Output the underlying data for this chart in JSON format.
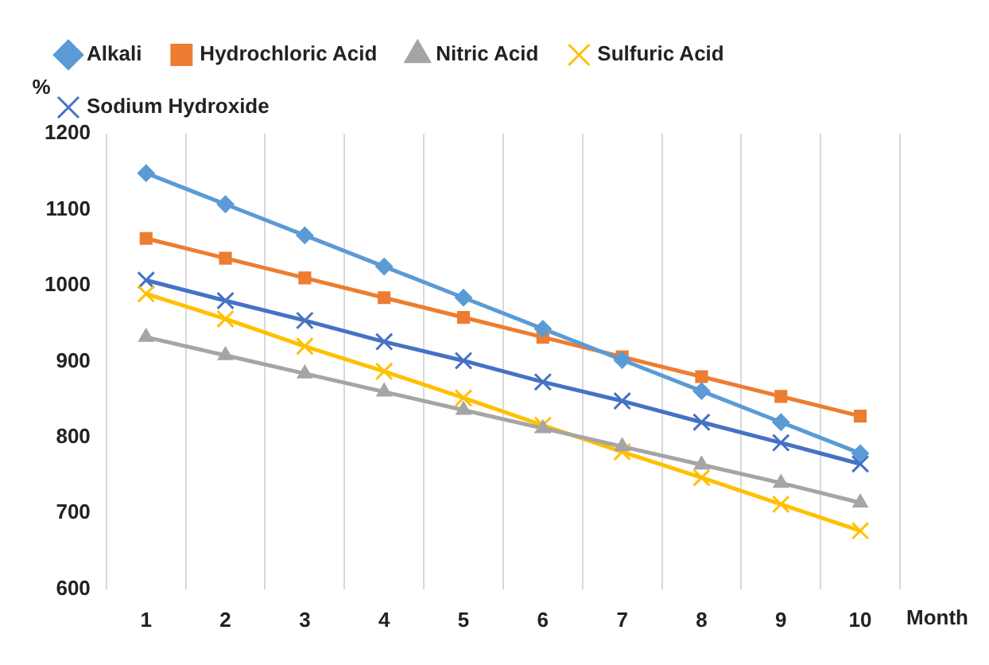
{
  "chart_data": {
    "type": "line",
    "xlabel": "Month",
    "ylabel": "%",
    "categories": [
      "1",
      "2",
      "3",
      "4",
      "5",
      "6",
      "7",
      "8",
      "9",
      "10"
    ],
    "series": [
      {
        "name": "Alkali",
        "color": "#5b9bd5",
        "marker": "diamond",
        "values": [
          1148,
          1107,
          1066,
          1025,
          984,
          943,
          902,
          861,
          820,
          779
        ]
      },
      {
        "name": "Hydrochloric Acid",
        "color": "#ed7d31",
        "marker": "square",
        "values": [
          1062,
          1036,
          1010,
          984,
          958,
          932,
          906,
          880,
          854,
          828
        ]
      },
      {
        "name": "Nitric Acid",
        "color": "#a5a5a5",
        "marker": "triangle",
        "values": [
          932,
          908,
          884,
          860,
          836,
          812,
          788,
          764,
          740,
          714
        ]
      },
      {
        "name": "Sulfuric Acid",
        "color": "#ffc000",
        "marker": "cross",
        "values": [
          989,
          956,
          920,
          887,
          852,
          816,
          781,
          747,
          712,
          677
        ]
      },
      {
        "name": "Sodium Hydroxide",
        "color": "#4472c4",
        "marker": "cross",
        "values": [
          1007,
          980,
          954,
          926,
          901,
          873,
          848,
          820,
          793,
          765
        ]
      }
    ],
    "ylim": [
      600,
      1200
    ],
    "yticks": [
      600,
      700,
      800,
      900,
      1000,
      1100,
      1200
    ],
    "grid": "x",
    "legend": "top",
    "line_style": "solid"
  }
}
